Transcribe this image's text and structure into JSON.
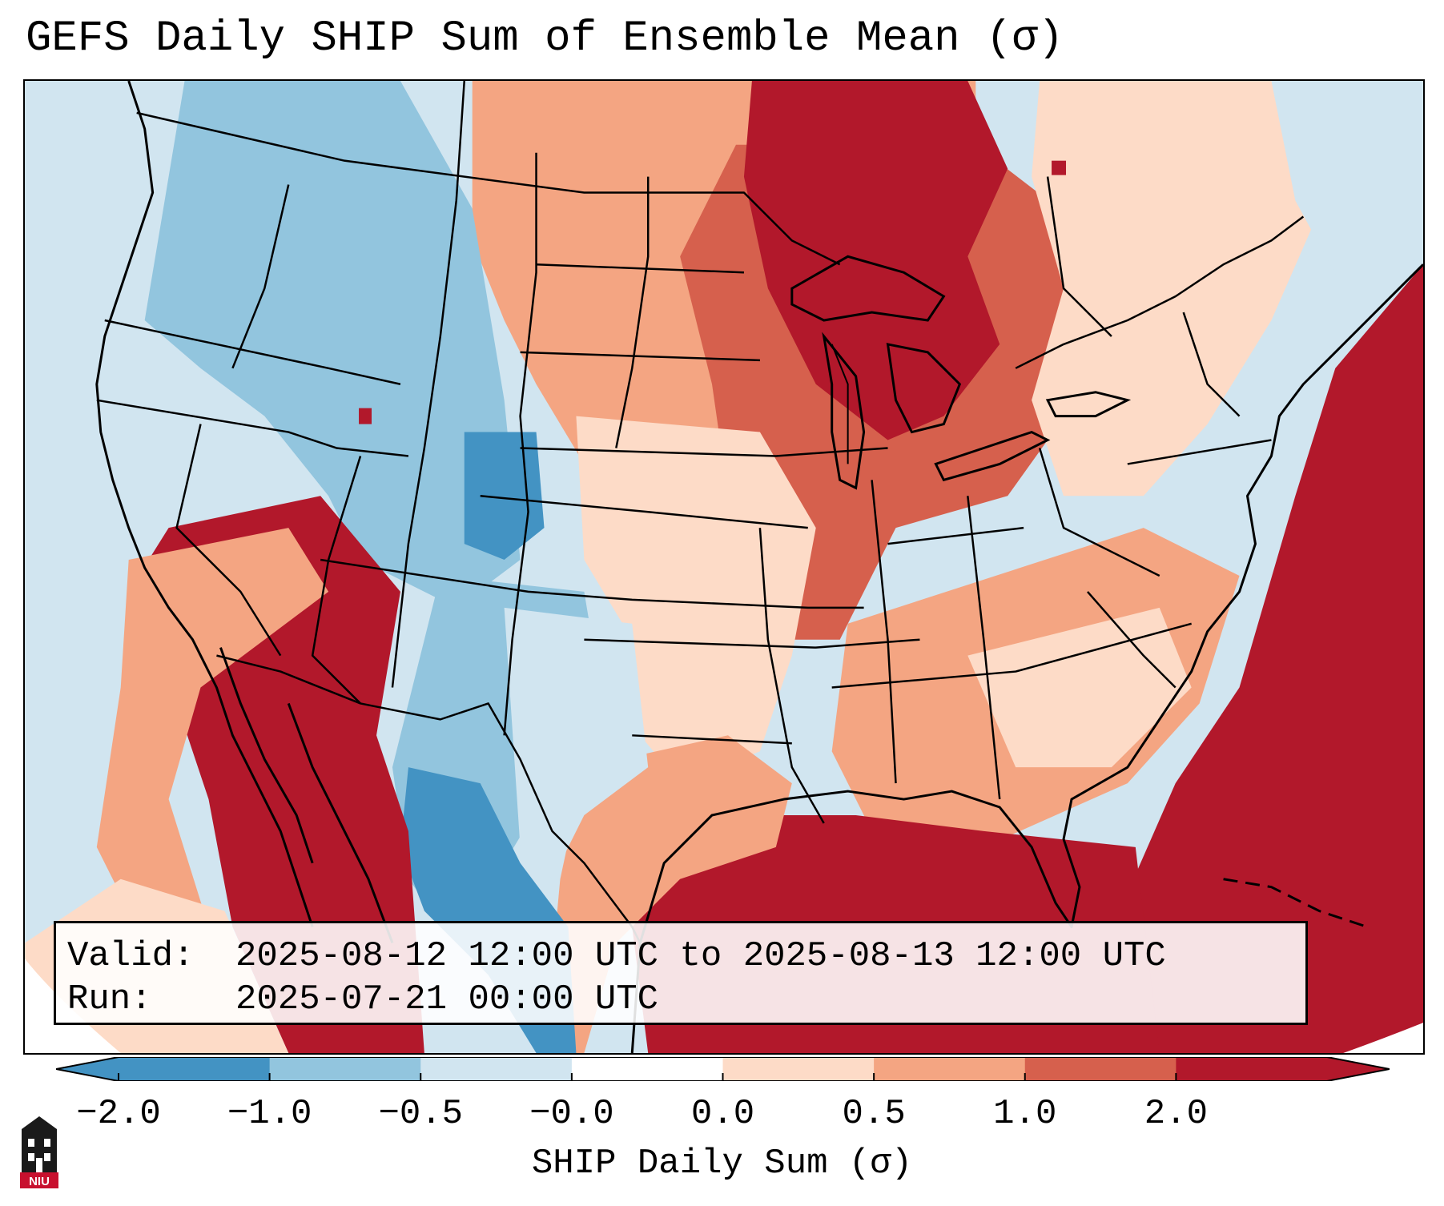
{
  "title": "GEFS Daily SHIP Sum of Ensemble Mean (σ)",
  "info": {
    "valid_label": "Valid:",
    "valid_value": "2025-08-12 12:00 UTC to 2025-08-13 12:00 UTC",
    "run_label": "Run:",
    "run_value": "2025-07-21 00:00 UTC"
  },
  "colorbar": {
    "label": "SHIP Daily Sum (σ)",
    "ticks": [
      "−2.0",
      "−1.0",
      "−0.5",
      "−0.0",
      "0.0",
      "0.5",
      "1.0",
      "2.0"
    ],
    "colors": [
      "#4393c3",
      "#92c5de",
      "#d1e5f0",
      "#ffffff",
      "#fddbc7",
      "#f4a582",
      "#d6604d",
      "#b2182b"
    ]
  },
  "legend_colors": {
    "strong_negative": "#4393c3",
    "negative": "#92c5de",
    "weak_negative": "#d1e5f0",
    "neutral": "#ffffff",
    "weak_positive": "#fddbc7",
    "positive": "#f4a582",
    "strong_positive": "#d6604d",
    "very_strong_positive": "#b2182b"
  },
  "logo": {
    "name": "niu-logo",
    "text": "NIU"
  }
}
